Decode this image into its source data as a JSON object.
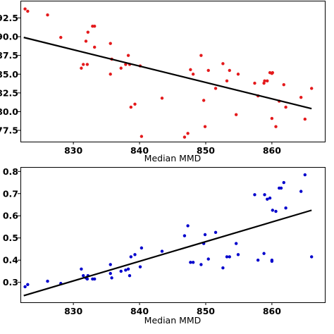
{
  "chart_data": [
    {
      "type": "scatter",
      "title": "",
      "xlabel": "Median MMD",
      "ylabel": "",
      "xlim": [
        822,
        868
      ],
      "ylim": [
        76.0,
        94.8
      ],
      "xticks": [
        830,
        840,
        850,
        860
      ],
      "xtick_labels": [
        "830",
        "840",
        "850",
        "860"
      ],
      "yticks": [
        77.5,
        80.0,
        82.5,
        85.0,
        87.5,
        90.0,
        92.5
      ],
      "ytick_labels": [
        "77.5",
        "80.0",
        "82.5",
        "85.0",
        "87.5",
        "90.0",
        "92.5"
      ],
      "grid": false,
      "legend": "none",
      "point_color": "#e41a1c",
      "line_color": "#000000",
      "trendline": {
        "x": [
          822.5,
          866.0
        ],
        "y": [
          89.9,
          80.4
        ]
      },
      "points": [
        {
          "x": 822.7,
          "y": 93.7
        },
        {
          "x": 823.1,
          "y": 93.4
        },
        {
          "x": 826.1,
          "y": 92.9
        },
        {
          "x": 828.1,
          "y": 89.9
        },
        {
          "x": 831.2,
          "y": 85.8
        },
        {
          "x": 831.5,
          "y": 86.3
        },
        {
          "x": 831.9,
          "y": 89.4
        },
        {
          "x": 832.1,
          "y": 86.3
        },
        {
          "x": 832.2,
          "y": 90.6
        },
        {
          "x": 832.9,
          "y": 91.4
        },
        {
          "x": 833.2,
          "y": 91.4
        },
        {
          "x": 833.2,
          "y": 88.6
        },
        {
          "x": 835.6,
          "y": 89.1
        },
        {
          "x": 835.6,
          "y": 85.0
        },
        {
          "x": 835.8,
          "y": 87.0
        },
        {
          "x": 837.2,
          "y": 85.8
        },
        {
          "x": 837.9,
          "y": 86.3
        },
        {
          "x": 838.3,
          "y": 87.5
        },
        {
          "x": 838.5,
          "y": 86.3
        },
        {
          "x": 838.7,
          "y": 80.6
        },
        {
          "x": 839.3,
          "y": 81.0
        },
        {
          "x": 840.1,
          "y": 86.1
        },
        {
          "x": 840.3,
          "y": 76.7
        },
        {
          "x": 843.4,
          "y": 81.8
        },
        {
          "x": 846.8,
          "y": 76.6
        },
        {
          "x": 847.3,
          "y": 77.1
        },
        {
          "x": 847.7,
          "y": 85.6
        },
        {
          "x": 848.1,
          "y": 85.0
        },
        {
          "x": 849.3,
          "y": 87.5
        },
        {
          "x": 849.7,
          "y": 81.5
        },
        {
          "x": 849.9,
          "y": 78.0
        },
        {
          "x": 850.4,
          "y": 85.5
        },
        {
          "x": 851.5,
          "y": 83.1
        },
        {
          "x": 852.6,
          "y": 86.4
        },
        {
          "x": 853.2,
          "y": 84.1
        },
        {
          "x": 853.6,
          "y": 85.5
        },
        {
          "x": 854.6,
          "y": 79.6
        },
        {
          "x": 854.9,
          "y": 85.0
        },
        {
          "x": 857.4,
          "y": 83.8
        },
        {
          "x": 857.9,
          "y": 82.1
        },
        {
          "x": 858.8,
          "y": 83.8
        },
        {
          "x": 858.9,
          "y": 84.1
        },
        {
          "x": 859.3,
          "y": 84.1
        },
        {
          "x": 859.7,
          "y": 85.2
        },
        {
          "x": 860.0,
          "y": 85.1
        },
        {
          "x": 860.0,
          "y": 79.1
        },
        {
          "x": 860.1,
          "y": 85.2
        },
        {
          "x": 860.6,
          "y": 78.0
        },
        {
          "x": 861.1,
          "y": 81.4
        },
        {
          "x": 861.8,
          "y": 83.6
        },
        {
          "x": 862.1,
          "y": 80.6
        },
        {
          "x": 864.4,
          "y": 81.9
        },
        {
          "x": 865.0,
          "y": 79.0
        },
        {
          "x": 866.0,
          "y": 83.1
        }
      ]
    },
    {
      "type": "scatter",
      "title": "",
      "xlabel": "Median MMD",
      "ylabel": "",
      "xlim": [
        822,
        868
      ],
      "ylim": [
        0.21,
        0.82
      ],
      "xticks": [
        830,
        840,
        850,
        860
      ],
      "xtick_labels": [
        "830",
        "840",
        "850",
        "860"
      ],
      "yticks": [
        0.3,
        0.4,
        0.5,
        0.6,
        0.7,
        0.8
      ],
      "ytick_labels": [
        "0.3",
        "0.4",
        "0.5",
        "0.6",
        "0.7",
        "0.8"
      ],
      "grid": false,
      "legend": "none",
      "point_color": "#0000cc",
      "line_color": "#000000",
      "trendline": {
        "x": [
          822.5,
          866.0
        ],
        "y": [
          0.24,
          0.625
        ]
      },
      "points": [
        {
          "x": 822.7,
          "y": 0.28
        },
        {
          "x": 823.1,
          "y": 0.29
        },
        {
          "x": 826.1,
          "y": 0.305
        },
        {
          "x": 828.1,
          "y": 0.295
        },
        {
          "x": 831.2,
          "y": 0.36
        },
        {
          "x": 831.5,
          "y": 0.33
        },
        {
          "x": 831.9,
          "y": 0.32
        },
        {
          "x": 832.1,
          "y": 0.315
        },
        {
          "x": 832.2,
          "y": 0.33
        },
        {
          "x": 832.9,
          "y": 0.315
        },
        {
          "x": 833.2,
          "y": 0.315
        },
        {
          "x": 835.6,
          "y": 0.38
        },
        {
          "x": 835.6,
          "y": 0.34
        },
        {
          "x": 835.8,
          "y": 0.32
        },
        {
          "x": 837.2,
          "y": 0.35
        },
        {
          "x": 837.9,
          "y": 0.355
        },
        {
          "x": 838.3,
          "y": 0.36
        },
        {
          "x": 838.5,
          "y": 0.33
        },
        {
          "x": 838.7,
          "y": 0.415
        },
        {
          "x": 839.3,
          "y": 0.425
        },
        {
          "x": 840.1,
          "y": 0.37
        },
        {
          "x": 840.3,
          "y": 0.455
        },
        {
          "x": 843.4,
          "y": 0.44
        },
        {
          "x": 846.8,
          "y": 0.51
        },
        {
          "x": 847.3,
          "y": 0.555
        },
        {
          "x": 847.7,
          "y": 0.39
        },
        {
          "x": 848.1,
          "y": 0.39
        },
        {
          "x": 849.3,
          "y": 0.38
        },
        {
          "x": 849.7,
          "y": 0.475
        },
        {
          "x": 849.9,
          "y": 0.515
        },
        {
          "x": 850.4,
          "y": 0.405
        },
        {
          "x": 851.5,
          "y": 0.525
        },
        {
          "x": 852.6,
          "y": 0.365
        },
        {
          "x": 853.2,
          "y": 0.415
        },
        {
          "x": 853.6,
          "y": 0.415
        },
        {
          "x": 854.6,
          "y": 0.475
        },
        {
          "x": 854.9,
          "y": 0.425
        },
        {
          "x": 857.4,
          "y": 0.695
        },
        {
          "x": 857.9,
          "y": 0.4
        },
        {
          "x": 858.8,
          "y": 0.43
        },
        {
          "x": 858.9,
          "y": 0.695
        },
        {
          "x": 859.3,
          "y": 0.675
        },
        {
          "x": 859.7,
          "y": 0.68
        },
        {
          "x": 860.0,
          "y": 0.4
        },
        {
          "x": 860.0,
          "y": 0.395
        },
        {
          "x": 860.1,
          "y": 0.625
        },
        {
          "x": 860.6,
          "y": 0.62
        },
        {
          "x": 861.1,
          "y": 0.725
        },
        {
          "x": 861.8,
          "y": 0.75
        },
        {
          "x": 862.1,
          "y": 0.635
        },
        {
          "x": 861.4,
          "y": 0.725
        },
        {
          "x": 864.4,
          "y": 0.71
        },
        {
          "x": 865.0,
          "y": 0.785
        },
        {
          "x": 866.0,
          "y": 0.415
        }
      ]
    }
  ]
}
